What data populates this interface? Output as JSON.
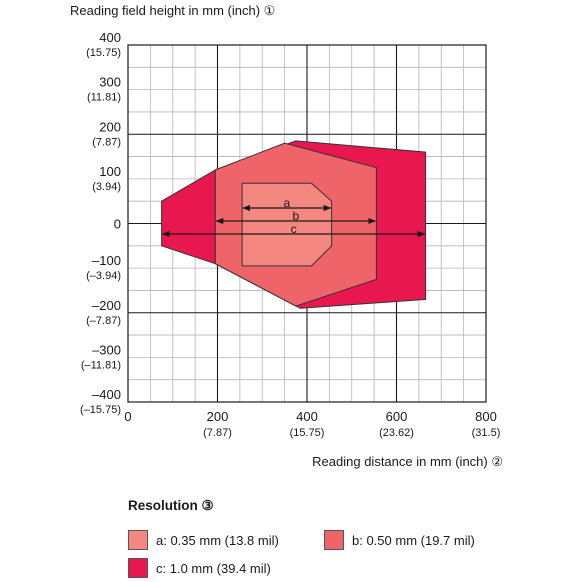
{
  "chart_data": {
    "type": "area",
    "title": "",
    "ylabel": "Reading field height in mm (inch) ①",
    "xlabel": "Reading distance in mm (inch) ②",
    "xlim": [
      0,
      800
    ],
    "ylim": [
      -400,
      400
    ],
    "grid": true,
    "x_ticks": [
      {
        "value": 0,
        "label": "0",
        "sublabel": ""
      },
      {
        "value": 200,
        "label": "200",
        "sublabel": "(7.87)"
      },
      {
        "value": 400,
        "label": "400",
        "sublabel": "(15.75)"
      },
      {
        "value": 600,
        "label": "600",
        "sublabel": "(23.62)"
      },
      {
        "value": 800,
        "label": "800",
        "sublabel": "(31.5)"
      }
    ],
    "y_ticks": [
      {
        "value": 400,
        "label": "400",
        "sublabel": "(15.75)"
      },
      {
        "value": 300,
        "label": "300",
        "sublabel": "(11.81)"
      },
      {
        "value": 200,
        "label": "200",
        "sublabel": "(7.87)"
      },
      {
        "value": 100,
        "label": "100",
        "sublabel": "(3.94)"
      },
      {
        "value": 0,
        "label": "0",
        "sublabel": ""
      },
      {
        "value": -100,
        "label": "–100",
        "sublabel": "(–3.94)"
      },
      {
        "value": -200,
        "label": "–200",
        "sublabel": "(–7.87)"
      },
      {
        "value": -300,
        "label": "–300",
        "sublabel": "(–11.81)"
      },
      {
        "value": -400,
        "label": "–400",
        "sublabel": "(–15.75)"
      }
    ],
    "series": [
      {
        "key": "c",
        "color": "#e8174f",
        "polygon": [
          [
            75,
            50
          ],
          [
            195,
            120
          ],
          [
            375,
            185
          ],
          [
            665,
            160
          ],
          [
            665,
            -170
          ],
          [
            385,
            -190
          ],
          [
            195,
            -90
          ],
          [
            75,
            -50
          ]
        ],
        "range": [
          75,
          665
        ]
      },
      {
        "key": "b",
        "color": "#ef6469",
        "polygon": [
          [
            195,
            120
          ],
          [
            350,
            180
          ],
          [
            555,
            125
          ],
          [
            555,
            -125
          ],
          [
            375,
            -185
          ],
          [
            195,
            -90
          ]
        ],
        "range": [
          195,
          555
        ]
      },
      {
        "key": "a",
        "color": "#f4877f",
        "polygon": [
          [
            255,
            90
          ],
          [
            410,
            90
          ],
          [
            455,
            50
          ],
          [
            455,
            -50
          ],
          [
            410,
            -95
          ],
          [
            255,
            -95
          ]
        ],
        "range": [
          255,
          455
        ]
      }
    ],
    "range_labels": [
      "a",
      "b",
      "c"
    ],
    "legend_title": "Resolution ③",
    "legend": [
      {
        "key": "a",
        "label": "a: 0.35 mm (13.8 mil)",
        "color": "#f4877f"
      },
      {
        "key": "b",
        "label": "b: 0.50 mm  (19.7 mil)",
        "color": "#ef6469"
      },
      {
        "key": "c",
        "label": "c: 1.0 mm (39.4 mil)",
        "color": "#e8174f"
      }
    ]
  }
}
